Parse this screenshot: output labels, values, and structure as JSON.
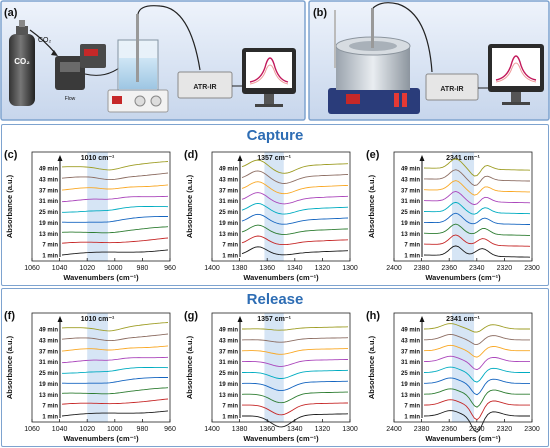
{
  "setup": {
    "panel_a": {
      "label": "(a)",
      "cylinder_label": "CO₂",
      "gas_label": "CO₂",
      "flow_label": "Flow",
      "atr_label": "ATR-IR"
    },
    "panel_b": {
      "label": "(b)",
      "atr_label": "ATR-IR"
    }
  },
  "sections": {
    "capture_title": "Capture",
    "release_title": "Release"
  },
  "time_labels": [
    "1 min",
    "7 min",
    "13 min",
    "19 min",
    "25 min",
    "31 min",
    "37 min",
    "43 min",
    "49 min"
  ],
  "series_colors": [
    "#1a1a1a",
    "#c62828",
    "#2e7d32",
    "#1565c0",
    "#00acc1",
    "#ab47bc",
    "#f9a825",
    "#8d6e63",
    "#9e9d24"
  ],
  "highlight_color": "#cfe0f3",
  "charts": [
    {
      "label": "(c)",
      "peak": "1010 cm⁻¹",
      "ylabel": "Absorbance (a.u.)",
      "xlabel": "Wavenumbers (cm⁻¹)",
      "ticks": [
        "1060",
        "1040",
        "1020",
        "1000",
        "980",
        "960"
      ]
    },
    {
      "label": "(d)",
      "peak": "1357 cm⁻¹",
      "ylabel": "Absorbance (a.u.)",
      "xlabel": "Wavenumbers (cm⁻¹)",
      "ticks": [
        "1400",
        "1380",
        "1360",
        "1340",
        "1320",
        "1300"
      ]
    },
    {
      "label": "(e)",
      "peak": "2341 cm⁻¹",
      "ylabel": "Absorbance (a.u.)",
      "xlabel": "Wavenumbers (cm⁻¹)",
      "ticks": [
        "2400",
        "2380",
        "2360",
        "2340",
        "2320",
        "2300"
      ]
    },
    {
      "label": "(f)",
      "peak": "1010 cm⁻¹",
      "ylabel": "Absorbance (a.u.)",
      "xlabel": "Wavenumbers (cm⁻¹)",
      "ticks": [
        "1060",
        "1040",
        "1020",
        "1000",
        "980",
        "960"
      ]
    },
    {
      "label": "(g)",
      "peak": "1357 cm⁻¹",
      "ylabel": "Absorbance (a.u.)",
      "xlabel": "Wavenumbers (cm⁻¹)",
      "ticks": [
        "1400",
        "1380",
        "1360",
        "1340",
        "1320",
        "1300"
      ]
    },
    {
      "label": "(h)",
      "peak": "2341 cm⁻¹",
      "ylabel": "Absorbance (a.u.)",
      "xlabel": "Wavenumbers (cm⁻¹)",
      "ticks": [
        "2400",
        "2380",
        "2360",
        "2340",
        "2320",
        "2300"
      ]
    }
  ]
}
